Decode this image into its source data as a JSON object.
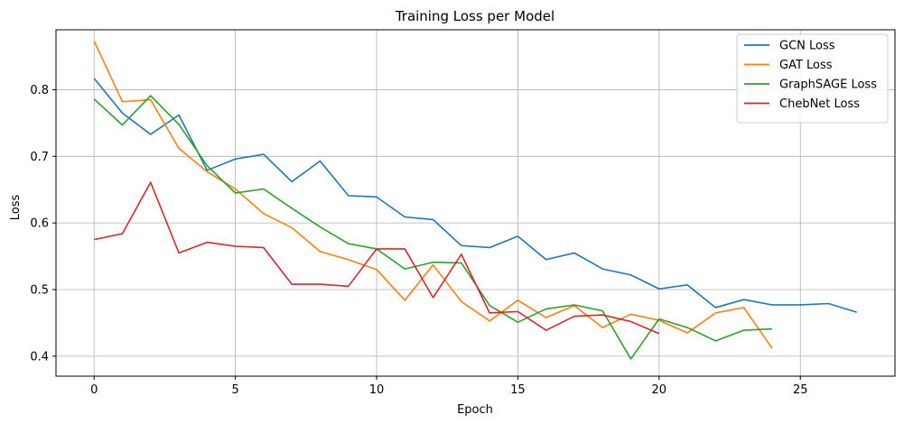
{
  "chart_data": {
    "type": "line",
    "title": "Training Loss per Model",
    "xlabel": "Epoch",
    "ylabel": "Loss",
    "xlim": [
      -1.35,
      28.35
    ],
    "ylim": [
      0.37,
      0.89
    ],
    "xticks": [
      0,
      5,
      10,
      15,
      20,
      25
    ],
    "yticks": [
      0.4,
      0.5,
      0.6,
      0.7,
      0.8
    ],
    "grid": true,
    "legend_position": "top-right",
    "series": [
      {
        "name": "GCN Loss",
        "color": "#1f77b4",
        "x": [
          0,
          1,
          2,
          3,
          4,
          5,
          6,
          7,
          8,
          9,
          10,
          11,
          12,
          13,
          14,
          15,
          16,
          17,
          18,
          19,
          20,
          21,
          22,
          23,
          24,
          25,
          26,
          27
        ],
        "values": [
          0.817,
          0.765,
          0.733,
          0.762,
          0.679,
          0.696,
          0.703,
          0.662,
          0.693,
          0.641,
          0.639,
          0.609,
          0.605,
          0.566,
          0.563,
          0.58,
          0.545,
          0.555,
          0.531,
          0.522,
          0.501,
          0.507,
          0.473,
          0.485,
          0.477,
          0.477,
          0.479,
          0.466
        ]
      },
      {
        "name": "GAT Loss",
        "color": "#ff7f0e",
        "x": [
          0,
          1,
          2,
          3,
          4,
          5,
          6,
          7,
          8,
          9,
          10,
          11,
          12,
          13,
          14,
          15,
          16,
          17,
          18,
          19,
          20,
          21,
          22,
          23,
          24
        ],
        "values": [
          0.873,
          0.782,
          0.785,
          0.712,
          0.677,
          0.651,
          0.614,
          0.593,
          0.557,
          0.545,
          0.53,
          0.484,
          0.537,
          0.482,
          0.453,
          0.484,
          0.458,
          0.476,
          0.443,
          0.463,
          0.454,
          0.435,
          0.465,
          0.473,
          0.412
        ]
      },
      {
        "name": "GraphSAGE Loss",
        "color": "#2ca02c",
        "x": [
          0,
          1,
          2,
          3,
          4,
          5,
          6,
          7,
          8,
          9,
          10,
          11,
          12,
          13,
          14,
          15,
          16,
          17,
          18,
          19,
          20,
          21,
          22,
          23,
          24
        ],
        "values": [
          0.786,
          0.747,
          0.791,
          0.748,
          0.686,
          0.645,
          0.651,
          0.622,
          0.594,
          0.569,
          0.561,
          0.531,
          0.541,
          0.54,
          0.476,
          0.451,
          0.471,
          0.477,
          0.468,
          0.396,
          0.456,
          0.443,
          0.423,
          0.439,
          0.441
        ]
      },
      {
        "name": "ChebNet Loss",
        "color": "#d62728",
        "x": [
          0,
          1,
          2,
          3,
          4,
          5,
          6,
          7,
          8,
          9,
          10,
          11,
          12,
          13,
          14,
          15,
          16,
          17,
          18,
          19,
          20
        ],
        "values": [
          0.575,
          0.584,
          0.661,
          0.555,
          0.571,
          0.565,
          0.563,
          0.508,
          0.508,
          0.505,
          0.561,
          0.561,
          0.488,
          0.553,
          0.465,
          0.467,
          0.439,
          0.46,
          0.462,
          0.452,
          0.434
        ]
      }
    ]
  }
}
